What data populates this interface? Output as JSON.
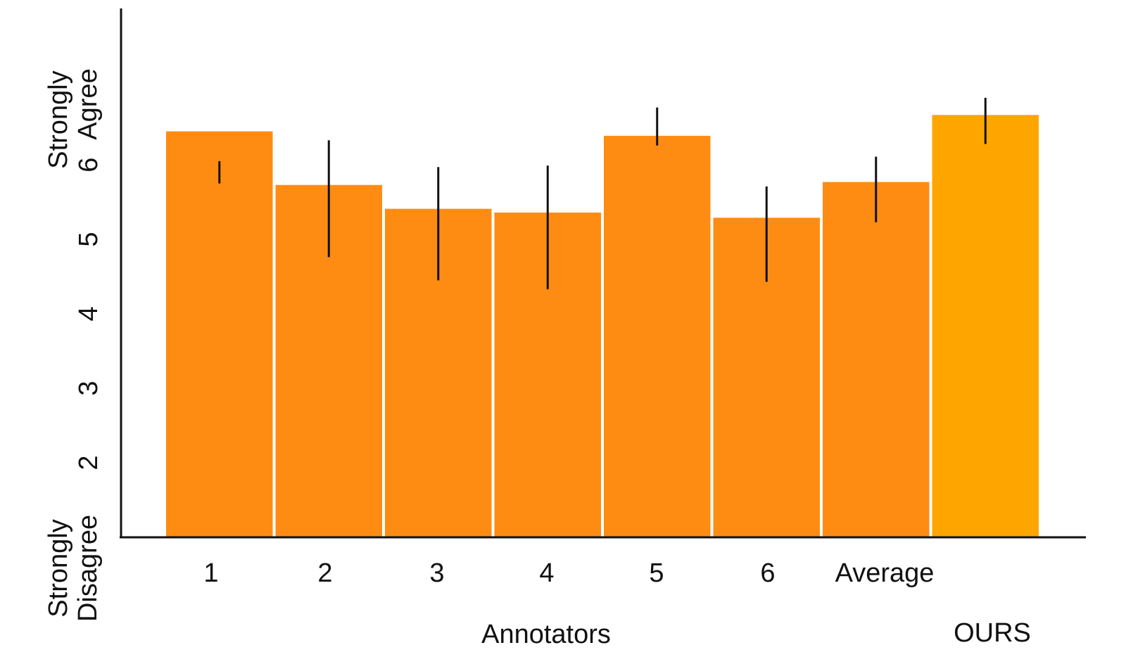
{
  "chart_data": {
    "type": "bar",
    "categories": [
      "1",
      "2",
      "3",
      "4",
      "5",
      "6",
      "Average",
      ""
    ],
    "values": [
      6.45,
      5.73,
      5.41,
      5.36,
      6.39,
      5.29,
      5.77,
      6.67
    ],
    "errors": [
      [
        5.75,
        6.05
      ],
      [
        4.76,
        6.33
      ],
      [
        4.45,
        5.97
      ],
      [
        4.33,
        5.99
      ],
      [
        6.26,
        6.77
      ],
      [
        4.43,
        5.71
      ],
      [
        5.23,
        6.11
      ],
      [
        6.9,
        6.28
      ]
    ],
    "error_lows": [
      5.75,
      4.76,
      4.45,
      4.33,
      6.26,
      4.43,
      5.23,
      6.28
    ],
    "error_highs": [
      6.05,
      6.33,
      5.97,
      5.99,
      6.77,
      5.71,
      6.11,
      6.9
    ],
    "bar_colors": [
      "#ff8c12",
      "#ff8c12",
      "#ff8c12",
      "#ff8c12",
      "#ff8c12",
      "#ff8c12",
      "#ff8c12",
      "#ffa500"
    ],
    "title": "",
    "xlabel": "Annotators",
    "xlabel_secondary": "OURS",
    "ylabel": "",
    "ylim": [
      1,
      8.1
    ],
    "yticks": [
      "2",
      "3",
      "4",
      "5",
      "6"
    ],
    "ytick_values": [
      2,
      3,
      4,
      5,
      6
    ],
    "y_end_labels": {
      "top": [
        "Strongly",
        "Agree"
      ],
      "bottom": [
        "Strongly",
        "Disagree"
      ]
    },
    "grid": false,
    "legend": "none"
  }
}
